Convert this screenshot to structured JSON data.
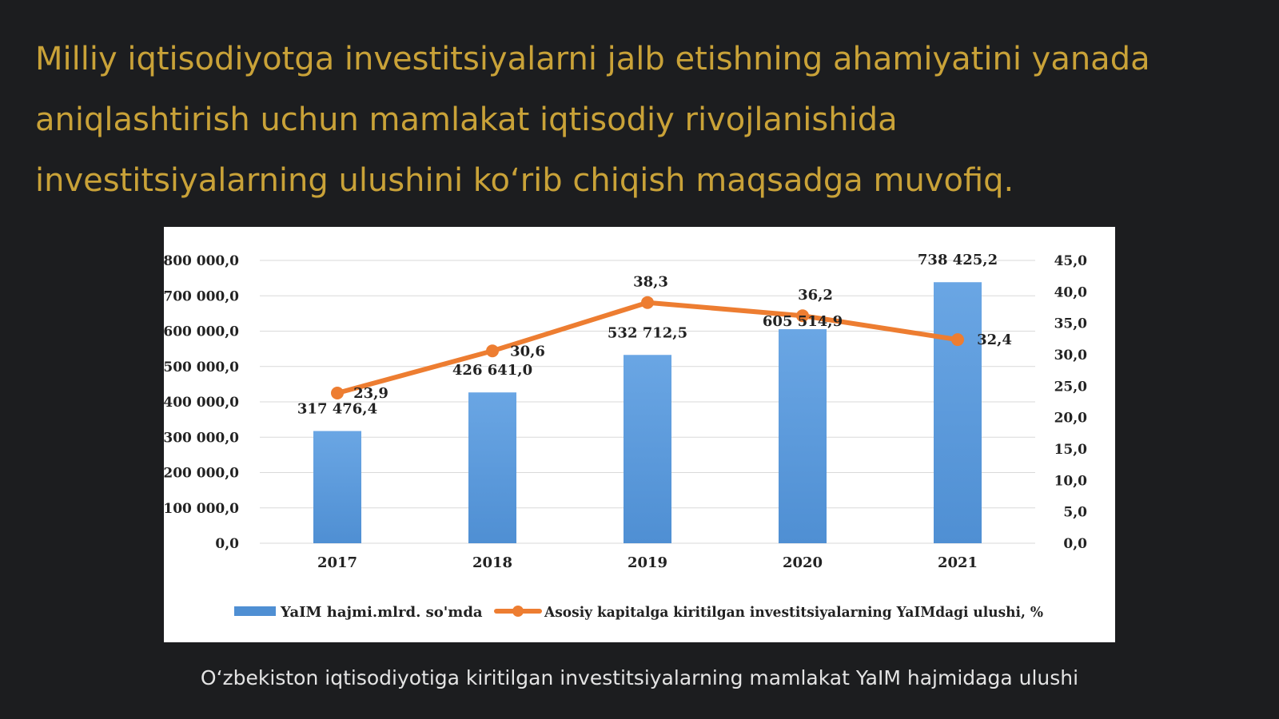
{
  "slide": {
    "heading_lines": [
      "Milliy iqtisodiyotga investitsiyalarni jalb etishning ahamiyatini yanada",
      "aniqlashtirish uchun mamlakat iqtisodiy rivojlanishida",
      "investitsiyalarning ulushini koʻrib chiqish maqsadga muvofiq."
    ],
    "caption": "Oʻzbekiston iqtisodiyotiga kiritilgan investitsiyalarning mamlakat YaIM hajmidaga ulushi",
    "colors": {
      "background": "#1c1d1f",
      "heading": "#c9a238",
      "caption": "#e4e4e4",
      "bar": "#4f8fd3",
      "line": "#ed7d31"
    }
  },
  "chart_data": {
    "type": "bar",
    "categories": [
      "2017",
      "2018",
      "2019",
      "2020",
      "2021"
    ],
    "series": [
      {
        "name": "YaIM hajmi.mlrd. so'mda",
        "type": "bar",
        "axis": "left",
        "values": [
          317476.4,
          426641.0,
          532712.5,
          605514.9,
          738425.2
        ],
        "labels": [
          "317 476,4",
          "426 641,0",
          "532 712,5",
          "605 514,9",
          "738 425,2"
        ]
      },
      {
        "name": "Asosiy kapitalga kiritilgan investitsiyalarning YaIMdagi ulushi, %",
        "type": "line",
        "axis": "right",
        "values": [
          23.9,
          30.6,
          38.3,
          36.2,
          32.4
        ],
        "labels": [
          "23,9",
          "30,6",
          "38,3",
          "36,2",
          "32,4"
        ]
      }
    ],
    "y_left": {
      "ylim": [
        0,
        800000
      ],
      "ticks": [
        "0,0",
        "100 000,0",
        "200 000,0",
        "300 000,0",
        "400 000,0",
        "500 000,0",
        "600 000,0",
        "700 000,0",
        "800 000,0"
      ]
    },
    "y_right": {
      "ylim": [
        0,
        45
      ],
      "ticks": [
        "0,0",
        "5,0",
        "10,0",
        "15,0",
        "20,0",
        "25,0",
        "30,0",
        "35,0",
        "40,0",
        "45,0"
      ]
    },
    "grid": true,
    "legend": "bottom"
  }
}
